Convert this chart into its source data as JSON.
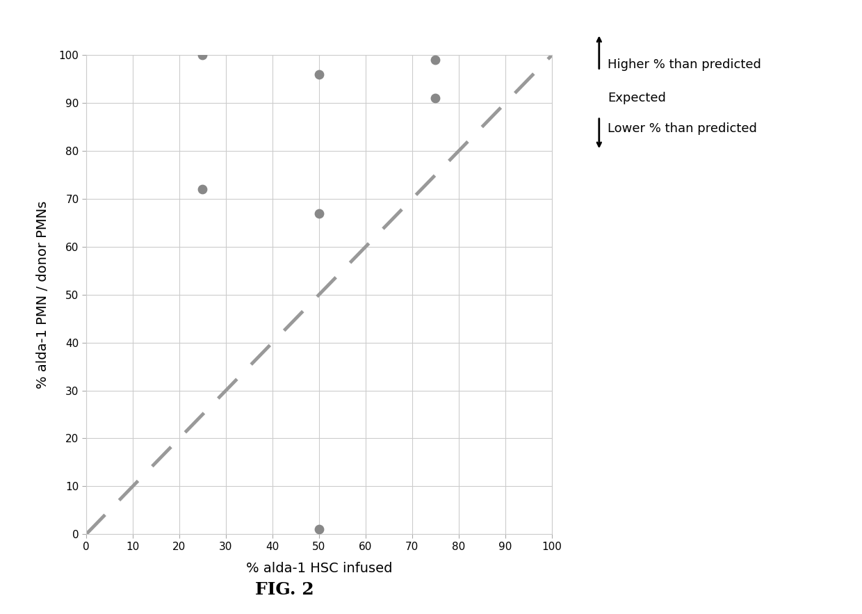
{
  "scatter_x": [
    25,
    25,
    50,
    50,
    50,
    75,
    75
  ],
  "scatter_y": [
    100,
    72,
    96,
    67,
    1,
    99,
    91
  ],
  "line_x": [
    0,
    100
  ],
  "line_y": [
    0,
    100
  ],
  "xlabel": "% alda-1 HSC infused",
  "ylabel": "% alda-1 PMN / donor PMNs",
  "xlim": [
    0,
    100
  ],
  "ylim": [
    0,
    100
  ],
  "xticks": [
    0,
    10,
    20,
    30,
    40,
    50,
    60,
    70,
    80,
    90,
    100
  ],
  "yticks": [
    0,
    10,
    20,
    30,
    40,
    50,
    60,
    70,
    80,
    90,
    100
  ],
  "fig_title": "FIG. 2",
  "annotation_higher": "Higher % than predicted",
  "annotation_expected": "Expected",
  "annotation_lower": "Lower % than predicted",
  "dot_color": "#888888",
  "line_color": "#999999",
  "background_color": "#ffffff",
  "grid_color": "#cccccc",
  "dot_size": 80,
  "line_width": 3.5
}
